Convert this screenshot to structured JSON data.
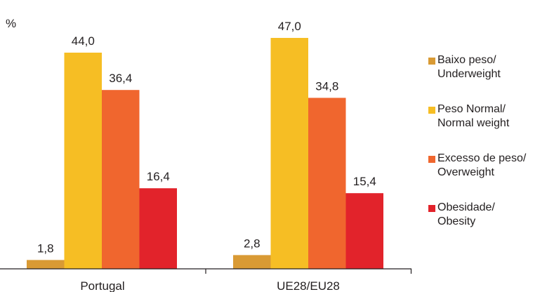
{
  "chart_data": {
    "type": "bar",
    "ylabel": "%",
    "categories": [
      "Portugal",
      "UE28/EU28"
    ],
    "series": [
      {
        "name": "Baixo peso/ Underweight",
        "color": "#d99a34",
        "values": [
          1.8,
          2.8
        ],
        "labels": [
          "1,8",
          "2,8"
        ]
      },
      {
        "name": "Peso Normal/ Normal weight",
        "color": "#f6be24",
        "values": [
          44.0,
          47.0
        ],
        "labels": [
          "44,0",
          "47,0"
        ]
      },
      {
        "name": "Excesso de peso/ Overweight",
        "color": "#f0662e",
        "values": [
          36.4,
          34.8
        ],
        "labels": [
          "36,4",
          "34,8"
        ]
      },
      {
        "name": "Obesidade/ Obesity",
        "color": "#e2232b",
        "values": [
          16.4,
          15.4
        ],
        "labels": [
          "16,4",
          "15,4"
        ]
      }
    ],
    "ylim": [
      0,
      50
    ],
    "grid": false,
    "legend_position": "right"
  },
  "legend": {
    "items": [
      {
        "line1": "Baixo peso/",
        "line2": "Underweight"
      },
      {
        "line1": "Peso Normal/",
        "line2": "Normal weight"
      },
      {
        "line1": "Excesso de peso/",
        "line2": "Overweight"
      },
      {
        "line1": "Obesidade/",
        "line2": "Obesity"
      }
    ]
  }
}
